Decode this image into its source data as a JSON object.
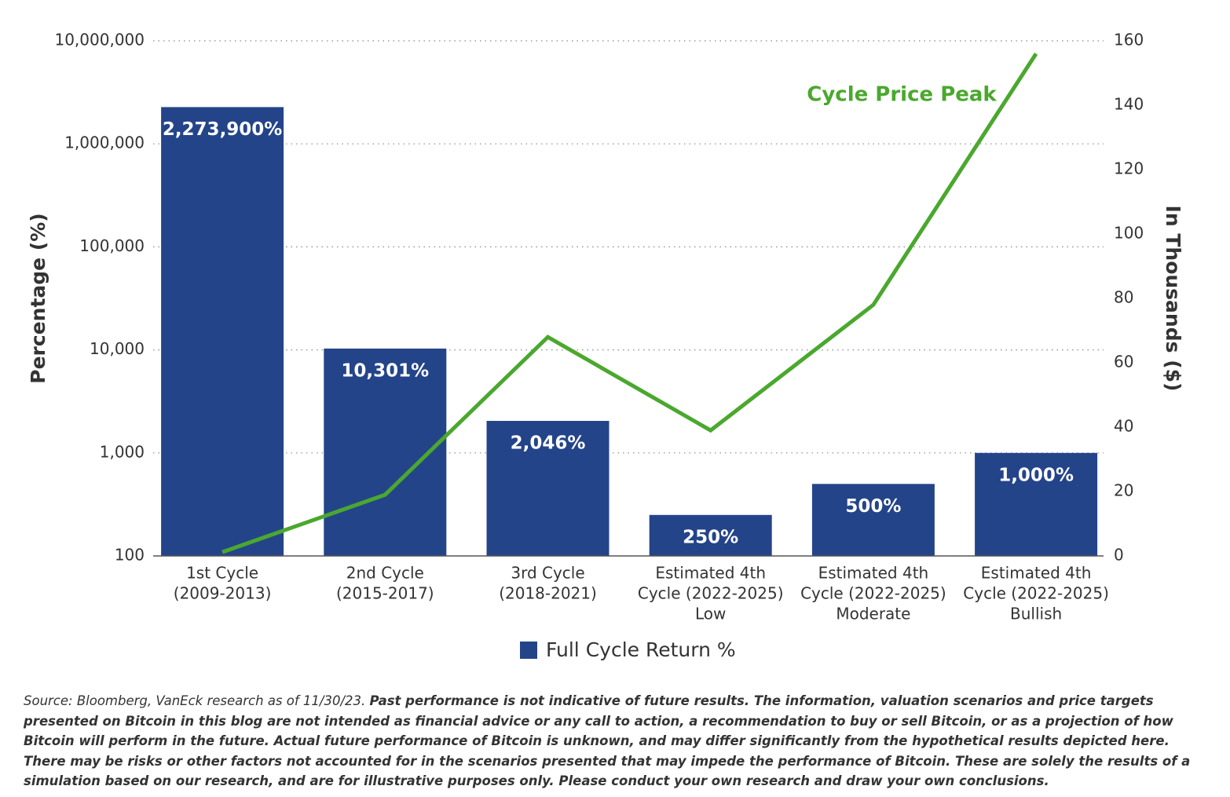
{
  "chart_data": {
    "type": "bar-line",
    "y_label": "Percentage (%)",
    "y2_label": "In Thousands ($)",
    "categories": [
      [
        "1st Cycle",
        "(2009-2013)"
      ],
      [
        "2nd Cycle",
        "(2015-2017)"
      ],
      [
        "3rd Cycle",
        "(2018-2021)"
      ],
      [
        "Estimated 4th",
        "Cycle (2022-2025)",
        "Low"
      ],
      [
        "Estimated 4th",
        "Cycle (2022-2025)",
        "Moderate"
      ],
      [
        "Estimated 4th",
        "Cycle (2022-2025)",
        "Bullish"
      ]
    ],
    "series": [
      {
        "name": "Full Cycle Return %",
        "type": "bar",
        "color": "#24448a",
        "values": [
          2273900,
          10301,
          2046,
          250,
          500,
          1000
        ],
        "value_labels": [
          "2,273,900%",
          "10,301%",
          "2,046%",
          "250%",
          "500%",
          "1,000%"
        ]
      },
      {
        "name": "Cycle Price Peak",
        "type": "line",
        "axis": "y2",
        "color": "#4aa82e",
        "values": [
          1.2,
          19,
          68,
          39,
          78,
          156
        ]
      }
    ],
    "y_scale": "log",
    "ylim": [
      100,
      10000000
    ],
    "yticks": [
      {
        "value": 100,
        "label": "100"
      },
      {
        "value": 1000,
        "label": "1,000"
      },
      {
        "value": 10000,
        "label": "10,000"
      },
      {
        "value": 100000,
        "label": "100,000"
      },
      {
        "value": 1000000,
        "label": "1,000,000"
      },
      {
        "value": 10000000,
        "label": "10,000,000"
      }
    ],
    "y2lim": [
      0,
      160
    ],
    "y2ticks": [
      0,
      20,
      40,
      60,
      80,
      100,
      120,
      140,
      160
    ],
    "grid": true,
    "legend": "bottom"
  },
  "footnote": {
    "source": "Source: Bloomberg, VanEck research as of 11/30/23.",
    "disclaimer": "Past performance is not indicative of future results. The information, valuation scenarios and price targets presented on Bitcoin in this blog are not intended as financial advice or any call to action, a recommendation to buy or sell Bitcoin, or as a projection of how Bitcoin will perform in the future. Actual future performance of Bitcoin is unknown, and may differ significantly from the hypothetical results depicted here. There may be risks or other factors not accounted for in the scenarios presented that may impede the performance of Bitcoin. These are solely the results of a simulation based on our research, and are for illustrative purposes only. Please conduct your own research and draw your own conclusions."
  }
}
